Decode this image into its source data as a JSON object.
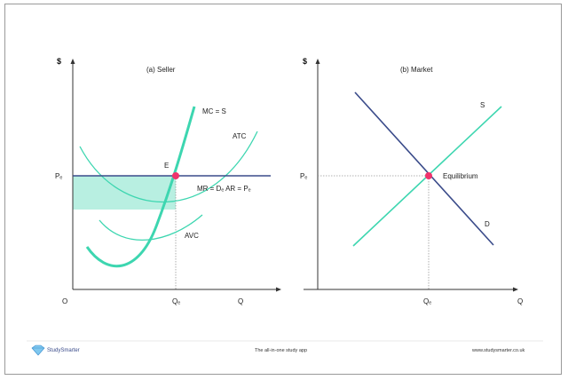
{
  "seller": {
    "title": "(a) Seller",
    "y_axis": "$",
    "origin": "O",
    "price_label": "Pₑ",
    "q_e_label": "Qₑ",
    "q_label": "Q",
    "point_label": "E",
    "mc_label": "MC = S",
    "atc_label": "ATC",
    "avc_label": "AVC",
    "demand_label": "MR = Dₑ AR = Pₑ"
  },
  "market": {
    "title": "(b) Market",
    "y_axis": "$",
    "price_label": "Pₑ",
    "q_e_label": "Qₑ",
    "q_label": "Q",
    "supply_label": "S",
    "demand_label": "D",
    "equilibrium_label": "Equilibrium"
  },
  "footer": {
    "brand": "StudySmarter",
    "tagline": "The all-in-one study app",
    "url": "www.studysmarter.co.uk"
  },
  "colors": {
    "supply": "#3dd6b0",
    "demand": "#3a4b8a",
    "profit_fill": "#b8efe1",
    "point": "#f0336d",
    "axis": "#333333"
  }
}
